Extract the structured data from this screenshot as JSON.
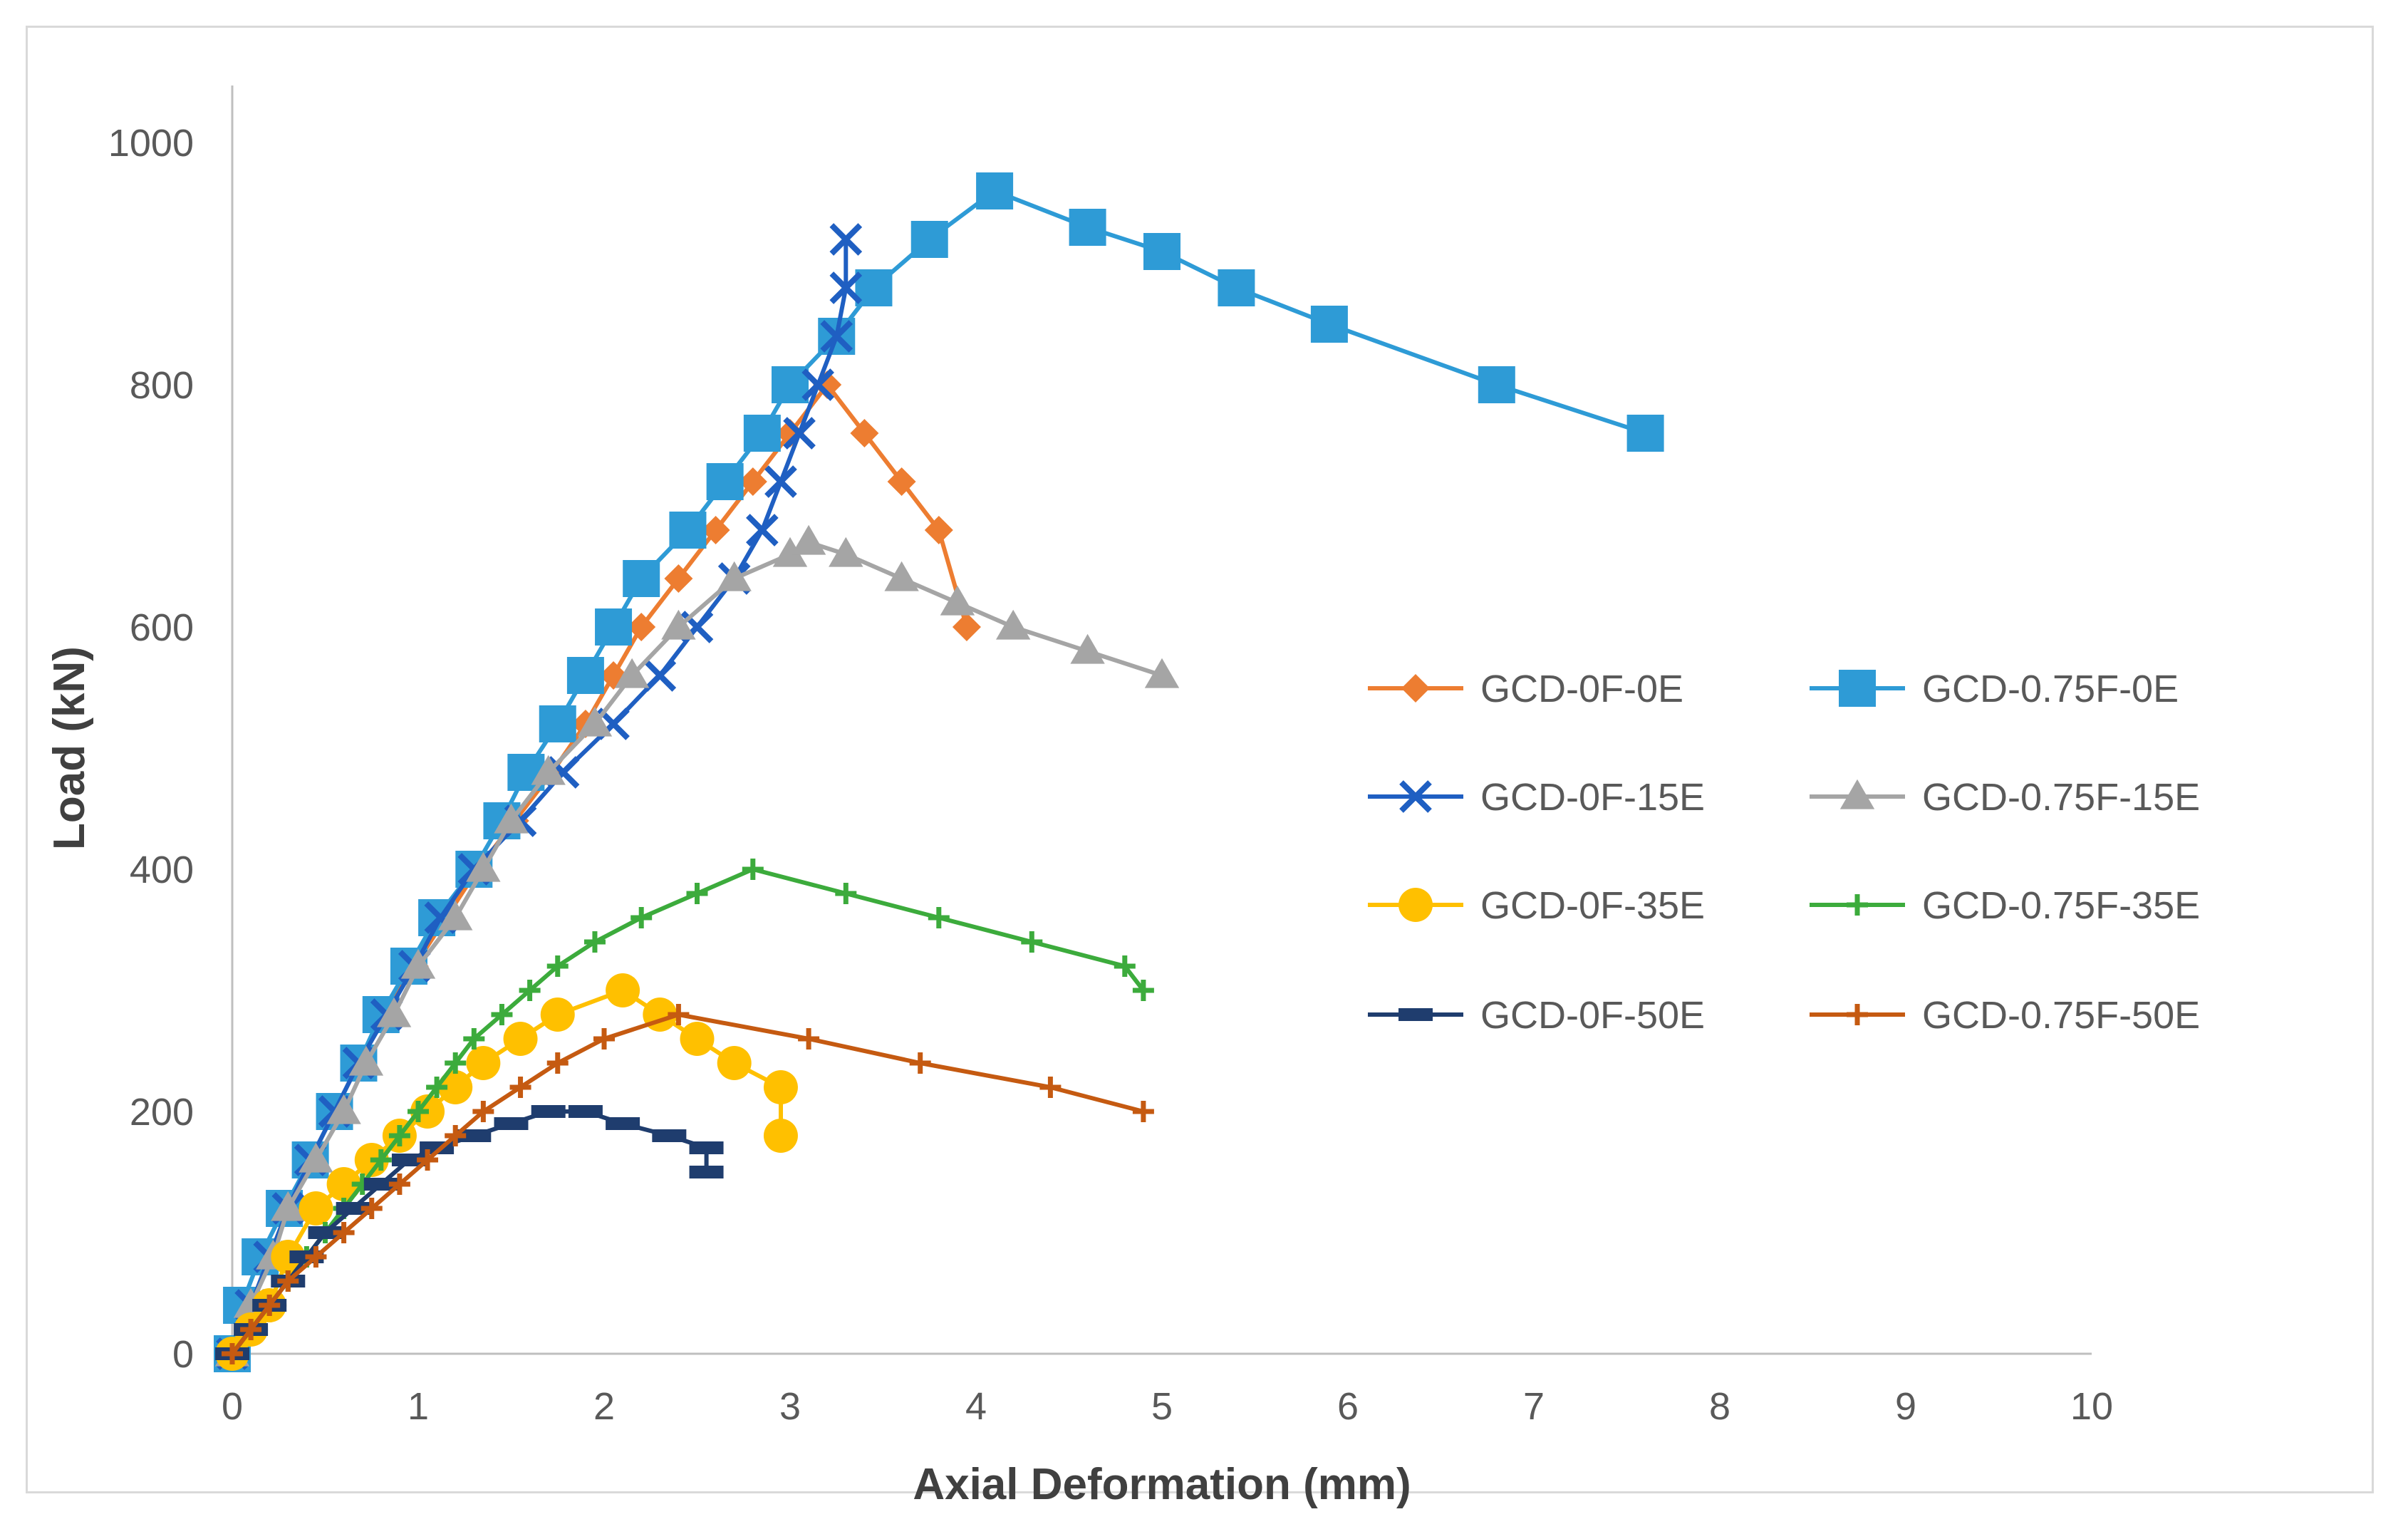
{
  "chart_data": {
    "type": "line",
    "title": "",
    "xlabel": "Axial Deformation (mm)",
    "ylabel": "Load (kN)",
    "xlim": [
      0,
      10
    ],
    "ylim": [
      0,
      1000
    ],
    "x_ticks": [
      "0",
      "1",
      "2",
      "3",
      "4",
      "5",
      "6",
      "7",
      "8",
      "9",
      "10"
    ],
    "y_ticks": [
      "0",
      "200",
      "400",
      "600",
      "800",
      "1000"
    ],
    "grid": false,
    "legend_position": "right",
    "series": [
      {
        "name": "GCD-0F-0E",
        "color": "#ED7D31",
        "marker": "diamond",
        "points": [
          [
            0,
            0
          ],
          [
            0.1,
            40
          ],
          [
            0.2,
            80
          ],
          [
            0.3,
            120
          ],
          [
            0.42,
            160
          ],
          [
            0.55,
            200
          ],
          [
            0.68,
            240
          ],
          [
            0.82,
            280
          ],
          [
            0.98,
            320
          ],
          [
            1.15,
            360
          ],
          [
            1.32,
            400
          ],
          [
            1.52,
            440
          ],
          [
            1.72,
            480
          ],
          [
            1.9,
            520
          ],
          [
            2.05,
            560
          ],
          [
            2.2,
            600
          ],
          [
            2.4,
            640
          ],
          [
            2.6,
            680
          ],
          [
            2.8,
            720
          ],
          [
            3.0,
            760
          ],
          [
            3.2,
            800
          ],
          [
            3.4,
            760
          ],
          [
            3.6,
            720
          ],
          [
            3.8,
            680
          ],
          [
            3.95,
            600
          ]
        ]
      },
      {
        "name": "GCD-0.75F-0E",
        "color": "#2E9BD6",
        "marker": "square",
        "points": [
          [
            0,
            0
          ],
          [
            0.05,
            40
          ],
          [
            0.15,
            80
          ],
          [
            0.28,
            120
          ],
          [
            0.42,
            160
          ],
          [
            0.55,
            200
          ],
          [
            0.68,
            240
          ],
          [
            0.8,
            280
          ],
          [
            0.95,
            320
          ],
          [
            1.1,
            360
          ],
          [
            1.3,
            400
          ],
          [
            1.45,
            440
          ],
          [
            1.58,
            480
          ],
          [
            1.75,
            520
          ],
          [
            1.9,
            560
          ],
          [
            2.05,
            600
          ],
          [
            2.2,
            640
          ],
          [
            2.45,
            680
          ],
          [
            2.65,
            720
          ],
          [
            2.85,
            760
          ],
          [
            3.0,
            800
          ],
          [
            3.25,
            840
          ],
          [
            3.45,
            880
          ],
          [
            3.75,
            920
          ],
          [
            4.1,
            960
          ],
          [
            4.6,
            930
          ],
          [
            5.0,
            910
          ],
          [
            5.4,
            880
          ],
          [
            5.9,
            850
          ],
          [
            6.8,
            800
          ],
          [
            7.6,
            760
          ]
        ]
      },
      {
        "name": "GCD-0F-15E",
        "color": "#1F5FC2",
        "marker": "x",
        "points": [
          [
            0,
            0
          ],
          [
            0.1,
            40
          ],
          [
            0.2,
            80
          ],
          [
            0.3,
            120
          ],
          [
            0.42,
            160
          ],
          [
            0.55,
            200
          ],
          [
            0.68,
            240
          ],
          [
            0.83,
            280
          ],
          [
            0.98,
            320
          ],
          [
            1.12,
            360
          ],
          [
            1.3,
            400
          ],
          [
            1.55,
            440
          ],
          [
            1.78,
            480
          ],
          [
            2.05,
            520
          ],
          [
            2.3,
            560
          ],
          [
            2.5,
            600
          ],
          [
            2.7,
            640
          ],
          [
            2.85,
            680
          ],
          [
            2.95,
            720
          ],
          [
            3.05,
            760
          ],
          [
            3.15,
            800
          ],
          [
            3.25,
            840
          ],
          [
            3.3,
            880
          ],
          [
            3.3,
            920
          ]
        ]
      },
      {
        "name": "GCD-0.75F-15E",
        "color": "#A5A5A5",
        "marker": "triangle",
        "points": [
          [
            0,
            0
          ],
          [
            0.1,
            40
          ],
          [
            0.22,
            80
          ],
          [
            0.3,
            120
          ],
          [
            0.45,
            160
          ],
          [
            0.6,
            200
          ],
          [
            0.72,
            240
          ],
          [
            0.87,
            280
          ],
          [
            1.0,
            320
          ],
          [
            1.2,
            360
          ],
          [
            1.35,
            400
          ],
          [
            1.5,
            440
          ],
          [
            1.7,
            480
          ],
          [
            1.95,
            520
          ],
          [
            2.15,
            560
          ],
          [
            2.4,
            600
          ],
          [
            2.7,
            640
          ],
          [
            3.0,
            660
          ],
          [
            3.1,
            670
          ],
          [
            3.3,
            660
          ],
          [
            3.6,
            640
          ],
          [
            3.9,
            620
          ],
          [
            4.2,
            600
          ],
          [
            4.6,
            580
          ],
          [
            5.0,
            560
          ]
        ]
      },
      {
        "name": "GCD-0F-35E",
        "color": "#FFC000",
        "marker": "circle",
        "points": [
          [
            0,
            0
          ],
          [
            0.1,
            20
          ],
          [
            0.2,
            40
          ],
          [
            0.3,
            80
          ],
          [
            0.45,
            120
          ],
          [
            0.6,
            140
          ],
          [
            0.75,
            160
          ],
          [
            0.9,
            180
          ],
          [
            1.05,
            200
          ],
          [
            1.2,
            220
          ],
          [
            1.35,
            240
          ],
          [
            1.55,
            260
          ],
          [
            1.75,
            280
          ],
          [
            2.1,
            300
          ],
          [
            2.3,
            280
          ],
          [
            2.5,
            260
          ],
          [
            2.7,
            240
          ],
          [
            2.95,
            220
          ],
          [
            2.95,
            180
          ]
        ]
      },
      {
        "name": "GCD-0.75F-35E",
        "color": "#3CAB3C",
        "marker": "plus",
        "points": [
          [
            0,
            0
          ],
          [
            0.1,
            20
          ],
          [
            0.2,
            40
          ],
          [
            0.3,
            60
          ],
          [
            0.4,
            80
          ],
          [
            0.5,
            100
          ],
          [
            0.6,
            120
          ],
          [
            0.7,
            140
          ],
          [
            0.8,
            160
          ],
          [
            0.9,
            180
          ],
          [
            1.0,
            200
          ],
          [
            1.1,
            220
          ],
          [
            1.2,
            240
          ],
          [
            1.3,
            260
          ],
          [
            1.45,
            280
          ],
          [
            1.6,
            300
          ],
          [
            1.75,
            320
          ],
          [
            1.95,
            340
          ],
          [
            2.2,
            360
          ],
          [
            2.5,
            380
          ],
          [
            2.8,
            400
          ],
          [
            3.3,
            380
          ],
          [
            3.8,
            360
          ],
          [
            4.3,
            340
          ],
          [
            4.8,
            320
          ],
          [
            4.9,
            300
          ]
        ]
      },
      {
        "name": "GCD-0F-50E",
        "color": "#1F3D6E",
        "marker": "dash",
        "points": [
          [
            0,
            0
          ],
          [
            0.1,
            20
          ],
          [
            0.2,
            40
          ],
          [
            0.3,
            60
          ],
          [
            0.4,
            80
          ],
          [
            0.5,
            100
          ],
          [
            0.65,
            120
          ],
          [
            0.8,
            140
          ],
          [
            0.95,
            160
          ],
          [
            1.1,
            170
          ],
          [
            1.3,
            180
          ],
          [
            1.5,
            190
          ],
          [
            1.7,
            200
          ],
          [
            1.9,
            200
          ],
          [
            2.1,
            190
          ],
          [
            2.35,
            180
          ],
          [
            2.55,
            170
          ],
          [
            2.55,
            150
          ]
        ]
      },
      {
        "name": "GCD-0.75F-50E",
        "color": "#C55A11",
        "marker": "plus",
        "points": [
          [
            0,
            0
          ],
          [
            0.1,
            20
          ],
          [
            0.2,
            40
          ],
          [
            0.3,
            60
          ],
          [
            0.45,
            80
          ],
          [
            0.6,
            100
          ],
          [
            0.75,
            120
          ],
          [
            0.9,
            140
          ],
          [
            1.05,
            160
          ],
          [
            1.2,
            180
          ],
          [
            1.35,
            200
          ],
          [
            1.55,
            220
          ],
          [
            1.75,
            240
          ],
          [
            2.0,
            260
          ],
          [
            2.4,
            280
          ],
          [
            3.1,
            260
          ],
          [
            3.7,
            240
          ],
          [
            4.4,
            220
          ],
          [
            4.9,
            200
          ]
        ]
      }
    ]
  }
}
